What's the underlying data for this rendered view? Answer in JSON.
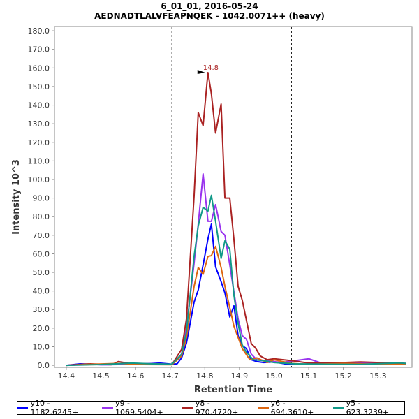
{
  "chart_data": {
    "type": "line",
    "title": "6_01_01, 2016-05-24",
    "subtitle": "AEDNADTLALVFEAPNQEK - 1042.0071++ (heavy)",
    "xlabel": "Retention Time",
    "ylabel": "Intensity 10^3",
    "xlim": [
      14.366,
      15.398
    ],
    "ylim": [
      -1.1,
      182.3
    ],
    "xticks": [
      "14.4",
      "14.5",
      "14.6",
      "14.7",
      "14.8",
      "14.9",
      "15.0",
      "15.1",
      "15.2",
      "15.3"
    ],
    "yticks": [
      "0.0",
      "10.0",
      "20.0",
      "30.0",
      "40.0",
      "50.0",
      "60.0",
      "70.0",
      "80.0",
      "90.0",
      "100.0",
      "110.0",
      "120.0",
      "130.0",
      "140.0",
      "150.0",
      "160.0",
      "170.0",
      "180.0"
    ],
    "vlines": [
      14.705,
      15.05
    ],
    "peak_annotation": {
      "label": "14.8",
      "x": 14.809,
      "y": 157.5
    },
    "legend_position": "bottom",
    "series": [
      {
        "name": "y10 - 1182.6245+",
        "color": "#0000ff",
        "points": [
          [
            14.4,
            0
          ],
          [
            14.44,
            0.8
          ],
          [
            14.5,
            0.3
          ],
          [
            14.6,
            0.5
          ],
          [
            14.67,
            1.2
          ],
          [
            14.705,
            0.6
          ],
          [
            14.72,
            0.8
          ],
          [
            14.733,
            4
          ],
          [
            14.747,
            12
          ],
          [
            14.769,
            34
          ],
          [
            14.781,
            40.6
          ],
          [
            14.795,
            54
          ],
          [
            14.809,
            68
          ],
          [
            14.819,
            76
          ],
          [
            14.831,
            53
          ],
          [
            14.847,
            45
          ],
          [
            14.858,
            39
          ],
          [
            14.872,
            26
          ],
          [
            14.884,
            32
          ],
          [
            14.896,
            16
          ],
          [
            14.908,
            10.5
          ],
          [
            14.92,
            9
          ],
          [
            14.934,
            3
          ],
          [
            14.95,
            2
          ],
          [
            14.97,
            1.5
          ],
          [
            15.0,
            1.8
          ],
          [
            15.03,
            0.8
          ],
          [
            15.08,
            0.6
          ],
          [
            15.15,
            0.7
          ],
          [
            15.25,
            0.5
          ],
          [
            15.38,
            0.6
          ]
        ]
      },
      {
        "name": "y9 - 1069.5404+",
        "color": "#9933ee",
        "points": [
          [
            14.4,
            0
          ],
          [
            14.46,
            0.5
          ],
          [
            14.52,
            0.3
          ],
          [
            14.6,
            1
          ],
          [
            14.67,
            0.8
          ],
          [
            14.705,
            0.5
          ],
          [
            14.733,
            6
          ],
          [
            14.747,
            20
          ],
          [
            14.769,
            55
          ],
          [
            14.781,
            76
          ],
          [
            14.795,
            103
          ],
          [
            14.809,
            77.5
          ],
          [
            14.819,
            77.5
          ],
          [
            14.831,
            86.5
          ],
          [
            14.847,
            72
          ],
          [
            14.858,
            70
          ],
          [
            14.872,
            54
          ],
          [
            14.896,
            25
          ],
          [
            14.908,
            16
          ],
          [
            14.92,
            14
          ],
          [
            14.934,
            6
          ],
          [
            14.95,
            3
          ],
          [
            14.98,
            2.5
          ],
          [
            15.02,
            1.5
          ],
          [
            15.1,
            3.5
          ],
          [
            15.14,
            1
          ],
          [
            15.2,
            1.2
          ],
          [
            15.3,
            1.5
          ],
          [
            15.38,
            1
          ]
        ]
      },
      {
        "name": "y8 - 970.4720+",
        "color": "#aa2222",
        "points": [
          [
            14.4,
            0
          ],
          [
            14.47,
            0.8
          ],
          [
            14.53,
            0.3
          ],
          [
            14.55,
            2
          ],
          [
            14.6,
            0.5
          ],
          [
            14.67,
            0.7
          ],
          [
            14.705,
            0.4
          ],
          [
            14.733,
            8.6
          ],
          [
            14.747,
            25
          ],
          [
            14.769,
            91
          ],
          [
            14.781,
            136
          ],
          [
            14.795,
            129
          ],
          [
            14.809,
            157.5
          ],
          [
            14.819,
            146
          ],
          [
            14.831,
            125
          ],
          [
            14.847,
            140.6
          ],
          [
            14.858,
            90
          ],
          [
            14.872,
            90
          ],
          [
            14.884,
            67.7
          ],
          [
            14.896,
            42.5
          ],
          [
            14.908,
            35
          ],
          [
            14.934,
            11.7
          ],
          [
            14.946,
            9.4
          ],
          [
            14.96,
            5
          ],
          [
            14.98,
            3
          ],
          [
            15.0,
            3.5
          ],
          [
            15.05,
            2.5
          ],
          [
            15.1,
            1.2
          ],
          [
            15.2,
            1.5
          ],
          [
            15.25,
            1.8
          ],
          [
            15.38,
            1
          ]
        ]
      },
      {
        "name": "y6 - 694.3610+",
        "color": "#dd6611",
        "points": [
          [
            14.4,
            0
          ],
          [
            14.48,
            0.6
          ],
          [
            14.55,
            1
          ],
          [
            14.62,
            0.4
          ],
          [
            14.705,
            0.3
          ],
          [
            14.733,
            5
          ],
          [
            14.747,
            15
          ],
          [
            14.769,
            42.5
          ],
          [
            14.781,
            52.6
          ],
          [
            14.795,
            49
          ],
          [
            14.809,
            58.6
          ],
          [
            14.819,
            59
          ],
          [
            14.831,
            64
          ],
          [
            14.847,
            52.6
          ],
          [
            14.858,
            42.5
          ],
          [
            14.872,
            31
          ],
          [
            14.884,
            21
          ],
          [
            14.896,
            15
          ],
          [
            14.908,
            9
          ],
          [
            14.93,
            3
          ],
          [
            14.95,
            4
          ],
          [
            14.98,
            1.5
          ],
          [
            15.0,
            3
          ],
          [
            15.05,
            1
          ],
          [
            15.1,
            0.5
          ],
          [
            15.2,
            1
          ],
          [
            15.3,
            0.6
          ],
          [
            15.38,
            0.5
          ]
        ]
      },
      {
        "name": "y5 - 623.3239+",
        "color": "#119988",
        "points": [
          [
            14.4,
            0
          ],
          [
            14.5,
            0.4
          ],
          [
            14.59,
            1.2
          ],
          [
            14.65,
            0.8
          ],
          [
            14.705,
            0.6
          ],
          [
            14.733,
            6
          ],
          [
            14.747,
            18
          ],
          [
            14.769,
            58.6
          ],
          [
            14.781,
            75
          ],
          [
            14.795,
            85
          ],
          [
            14.809,
            83
          ],
          [
            14.819,
            91.5
          ],
          [
            14.831,
            77.5
          ],
          [
            14.847,
            57.5
          ],
          [
            14.858,
            67
          ],
          [
            14.872,
            62.5
          ],
          [
            14.884,
            37.6
          ],
          [
            14.896,
            22.5
          ],
          [
            14.908,
            11
          ],
          [
            14.92,
            7
          ],
          [
            14.94,
            3
          ],
          [
            14.97,
            2.5
          ],
          [
            15.0,
            1.5
          ],
          [
            15.06,
            0.8
          ],
          [
            15.15,
            0.6
          ],
          [
            15.25,
            0.5
          ],
          [
            15.36,
            1.3
          ],
          [
            15.38,
            1
          ]
        ]
      }
    ]
  }
}
